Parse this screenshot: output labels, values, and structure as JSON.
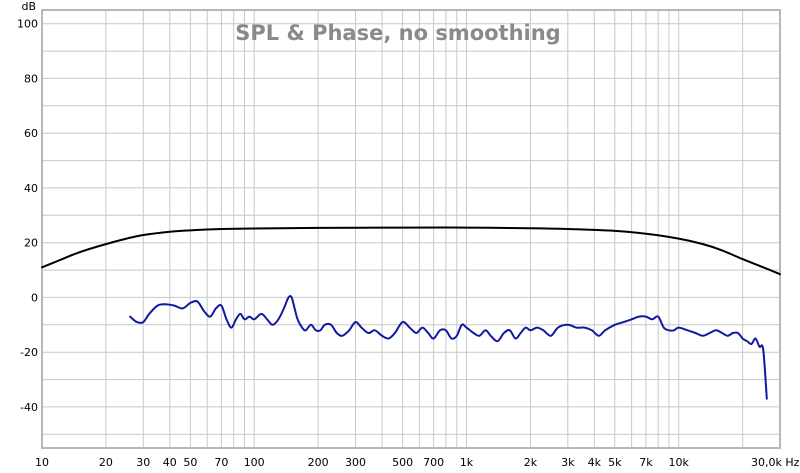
{
  "chart_data": {
    "type": "line",
    "title": "SPL & Phase, no smoothing",
    "ylabel": "dB",
    "xunit": "Hz",
    "xscale": "log",
    "xlim": [
      10,
      30000
    ],
    "ylim": [
      -55,
      105
    ],
    "grid": true,
    "colors": {
      "spl": "#000000",
      "phase": "#0f1a9e",
      "grid": "#c8c8c8",
      "frame": "#b8b8b8"
    },
    "y_ticks": [
      {
        "value": 100,
        "label": "100"
      },
      {
        "value": 80,
        "label": "80"
      },
      {
        "value": 60,
        "label": "60"
      },
      {
        "value": 40,
        "label": "40"
      },
      {
        "value": 20,
        "label": "20"
      },
      {
        "value": 0,
        "label": "0"
      },
      {
        "value": -20,
        "label": "-20"
      },
      {
        "value": -40,
        "label": "-40"
      }
    ],
    "x_ticks": [
      {
        "value": 10,
        "label": "10"
      },
      {
        "value": 20,
        "label": "20"
      },
      {
        "value": 30,
        "label": "30"
      },
      {
        "value": 40,
        "label": "40"
      },
      {
        "value": 50,
        "label": "50"
      },
      {
        "value": 70,
        "label": "70"
      },
      {
        "value": 100,
        "label": "100"
      },
      {
        "value": 200,
        "label": "200"
      },
      {
        "value": 300,
        "label": "300"
      },
      {
        "value": 500,
        "label": "500"
      },
      {
        "value": 700,
        "label": "700"
      },
      {
        "value": 1000,
        "label": "1k"
      },
      {
        "value": 2000,
        "label": "2k"
      },
      {
        "value": 3000,
        "label": "3k"
      },
      {
        "value": 4000,
        "label": "4k"
      },
      {
        "value": 5000,
        "label": "5k"
      },
      {
        "value": 7000,
        "label": "7k"
      },
      {
        "value": 10000,
        "label": "10k"
      },
      {
        "value": 30000,
        "label": "30,0k Hz"
      }
    ],
    "series": [
      {
        "id": "spl",
        "x": [
          10,
          12,
          15,
          20,
          25,
          30,
          40,
          50,
          70,
          100,
          200,
          500,
          1000,
          2000,
          3000,
          5000,
          7000,
          10000,
          13000,
          16000,
          20000,
          25000,
          30000
        ],
        "y": [
          11,
          13.5,
          16.5,
          19.5,
          21.5,
          22.8,
          24,
          24.5,
          25,
          25.2,
          25.4,
          25.5,
          25.5,
          25.3,
          25,
          24.3,
          23.3,
          21.5,
          19.5,
          17.2,
          14,
          11,
          8.5
        ]
      },
      {
        "id": "phase",
        "x": [
          26,
          28,
          30,
          32,
          35,
          38,
          42,
          46,
          50,
          54,
          58,
          62,
          66,
          70,
          74,
          78,
          82,
          86,
          90,
          95,
          100,
          108,
          115,
          122,
          130,
          138,
          145,
          150,
          155,
          160,
          168,
          175,
          185,
          195,
          205,
          215,
          230,
          245,
          260,
          280,
          300,
          320,
          345,
          370,
          400,
          430,
          460,
          500,
          540,
          580,
          620,
          660,
          700,
          750,
          800,
          850,
          900,
          950,
          1000,
          1080,
          1150,
          1230,
          1300,
          1400,
          1500,
          1600,
          1700,
          1800,
          1900,
          2000,
          2150,
          2300,
          2500,
          2700,
          3000,
          3300,
          3600,
          3900,
          4200,
          4500,
          5000,
          5500,
          6000,
          6500,
          7000,
          7500,
          8000,
          8500,
          9000,
          9500,
          10000,
          11000,
          12000,
          13000,
          14000,
          15000,
          16000,
          17000,
          18000,
          19000,
          20000,
          21000,
          22000,
          23000,
          24000,
          25000,
          26000
        ],
        "y": [
          -7,
          -9,
          -9,
          -6,
          -3,
          -2.5,
          -3,
          -4,
          -2,
          -1.5,
          -5,
          -7,
          -4,
          -3,
          -8,
          -11,
          -8,
          -6,
          -8,
          -7,
          -8,
          -6,
          -8,
          -10,
          -8,
          -4,
          0,
          0,
          -4,
          -8,
          -11,
          -12,
          -10,
          -12,
          -12,
          -10,
          -10,
          -13,
          -14,
          -12,
          -9,
          -11,
          -13,
          -12,
          -14,
          -15,
          -13,
          -9,
          -11,
          -13,
          -11,
          -13,
          -15,
          -12,
          -12,
          -15,
          -14,
          -10,
          -11,
          -13,
          -14,
          -12,
          -14,
          -16,
          -13,
          -12,
          -15,
          -13,
          -11,
          -12,
          -11,
          -12,
          -14,
          -11,
          -10,
          -11,
          -11,
          -12,
          -14,
          -12,
          -10,
          -9,
          -8,
          -7,
          -7,
          -8,
          -7,
          -11,
          -12,
          -12,
          -11,
          -12,
          -13,
          -14,
          -13,
          -12,
          -13,
          -14,
          -13,
          -13,
          -15,
          -16,
          -17,
          -15,
          -18,
          -19,
          -37
        ]
      }
    ]
  }
}
